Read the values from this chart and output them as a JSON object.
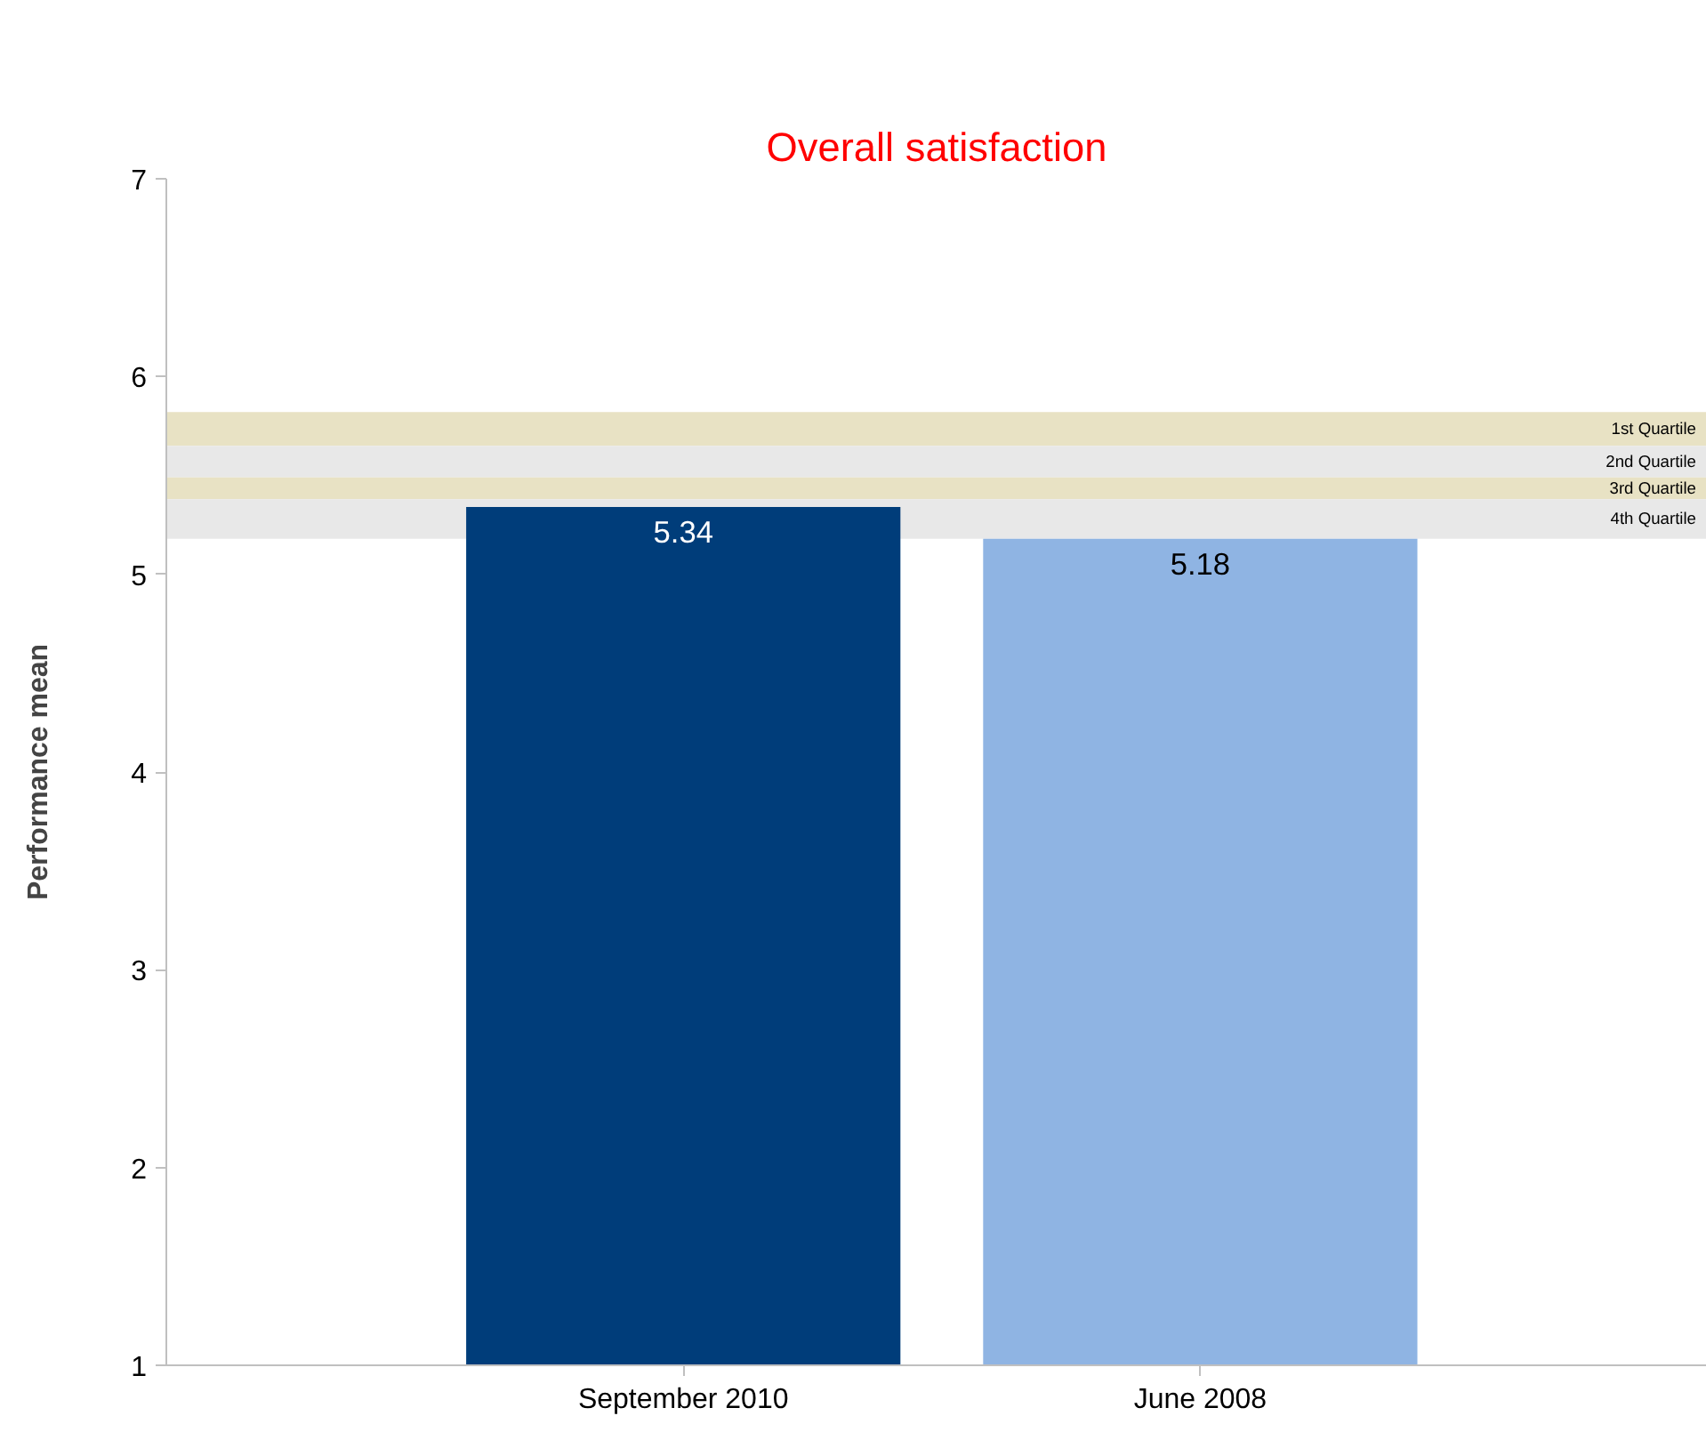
{
  "chart_data": {
    "type": "bar",
    "title": "Overall satisfaction",
    "ylabel": "Performance mean",
    "categories": [
      "September 2010",
      "June 2008"
    ],
    "values": [
      5.34,
      5.18
    ],
    "colors": [
      "#003d7a",
      "#8fb4e3"
    ],
    "ylim": [
      1,
      7
    ],
    "yticks": [
      1,
      2,
      3,
      4,
      5,
      6,
      7
    ],
    "grid": false,
    "data_labels": true,
    "bands": [
      {
        "axis": "y",
        "from": 5.65,
        "to": 5.82,
        "label": "1st Quartile",
        "color": "#e8e2c4"
      },
      {
        "axis": "y",
        "from": 5.49,
        "to": 5.65,
        "label": "2nd Quartile",
        "color": "#e8e8e8"
      },
      {
        "axis": "y",
        "from": 5.38,
        "to": 5.49,
        "label": "3rd Quartile",
        "color": "#e8e2c4"
      },
      {
        "axis": "y",
        "from": 5.18,
        "to": 5.38,
        "label": "4th Quartile",
        "color": "#e8e8e8"
      }
    ]
  }
}
